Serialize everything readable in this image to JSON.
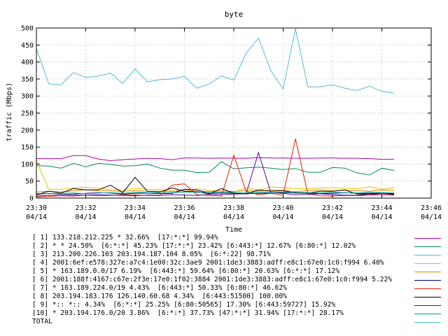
{
  "chart_data": {
    "type": "line",
    "title": "byte",
    "xlabel": "Time",
    "ylabel": "traffic (Mbps)",
    "ylim": [
      0,
      500
    ],
    "yticks": [
      "0",
      "50",
      "100",
      "150",
      "200",
      "250",
      "300",
      "350",
      "400",
      "450",
      "500"
    ],
    "xticks": [
      {
        "time": "23:30",
        "date": "04/14"
      },
      {
        "time": "23:32",
        "date": "04/14"
      },
      {
        "time": "23:34",
        "date": "04/14"
      },
      {
        "time": "23:36",
        "date": "04/14"
      },
      {
        "time": "23:38",
        "date": "04/14"
      },
      {
        "time": "23:40",
        "date": "04/14"
      },
      {
        "time": "23:42",
        "date": "04/14"
      },
      {
        "time": "23:44",
        "date": "04/14"
      },
      {
        "time": "23:46",
        "date": "04/14"
      }
    ],
    "x_minutes": [
      0,
      0.5,
      1,
      1.5,
      2,
      2.5,
      3,
      3.5,
      4,
      4.5,
      5,
      5.5,
      6,
      6.5,
      7,
      7.5,
      8,
      8.5,
      9,
      9.5,
      10,
      10.5,
      11,
      11.5,
      12,
      12.5,
      13,
      13.5,
      14,
      14.5
    ],
    "grid": true,
    "series": [
      {
        "name": "[ 1] 133.218.212.225 * 32.66%  [17:*:*] 99.94%",
        "color": "#b000b0",
        "values": [
          116,
          116,
          116,
          125,
          125,
          115,
          110,
          113,
          115,
          117,
          116,
          113,
          118,
          118,
          117,
          118,
          117,
          117,
          119,
          118,
          118,
          117,
          117,
          118,
          118,
          117,
          117,
          116,
          114,
          114
        ]
      },
      {
        "name": "[ 2] * * 24.50%  [6:*:*] 45.23% [17:*:*] 23.42% [6:443:*] 12.67% [6:80:*] 12.02%",
        "color": "#008a5a",
        "values": [
          95,
          94,
          88,
          102,
          92,
          102,
          99,
          94,
          95,
          100,
          88,
          82,
          82,
          75,
          76,
          107,
          86,
          89,
          91,
          88,
          84,
          87,
          76,
          76,
          90,
          88,
          74,
          68,
          88,
          81
        ]
      },
      {
        "name": "[ 3] 213.200.226.103 203.194.187.104 8.05%  [6:*:22] 98.71%",
        "color": "#55b8d8",
        "values": [
          440,
          336,
          333,
          369,
          355,
          358,
          368,
          337,
          380,
          342,
          348,
          350,
          358,
          323,
          335,
          359,
          347,
          426,
          470,
          374,
          321,
          498,
          327,
          327,
          333,
          323,
          316,
          329,
          314,
          308
        ]
      },
      {
        "name": "[ 4] 2001:6ef:e578:327e:a7c4:1e00:32c:3ae9 2001:1de3:3883:adff:e8c1:67e0:1c0:f994 6.40%",
        "color": "#e8c000",
        "values": [
          109,
          26,
          26,
          30,
          32,
          29,
          25,
          24,
          29,
          26,
          25,
          22,
          17,
          28,
          22,
          21,
          17,
          30,
          23,
          33,
          30,
          28,
          27,
          30,
          30,
          29,
          28,
          33,
          26,
          30
        ]
      },
      {
        "name": "[ 5] * 163.189.0.0/17 6.19%  [6:443:*] 59.64% [6:80:*] 20.63% [6:*:*] 17.12%",
        "color": "#e08000",
        "values": [
          18,
          20,
          18,
          21,
          25,
          22,
          21,
          20,
          22,
          20,
          20,
          19,
          25,
          20,
          19,
          21,
          19,
          22,
          20,
          24,
          22,
          19,
          22,
          24,
          21,
          23,
          22,
          20,
          24,
          22
        ]
      },
      {
        "name": "[ 6] 2001:188f:4167:c67e:2f3e:17e0:1f02:3884 2001:1de3:3883:adff:e8c1:67e0:1c0:f994 5.22%",
        "color": "#000080",
        "values": [
          11,
          14,
          11,
          12,
          14,
          16,
          15,
          12,
          14,
          15,
          13,
          14,
          26,
          24,
          14,
          15,
          14,
          13,
          14,
          15,
          16,
          16,
          14,
          14,
          14,
          16,
          14,
          14,
          14,
          14
        ]
      },
      {
        "name": "[ 7] * 163.189.224.0/19 4.43%  [6:443:*] 50.33% [6:80:*] 46.62%",
        "color": "#e02000",
        "values": [
          4,
          5,
          7,
          6,
          9,
          7,
          8,
          10,
          9,
          8,
          7,
          38,
          42,
          10,
          8,
          6,
          126,
          20,
          10,
          14,
          9,
          174,
          12,
          7,
          6,
          8,
          7,
          9,
          10,
          11
        ]
      },
      {
        "name": "[ 8] 203.194.183.176 126.140.60.68 4.34%  [6:443:51500] 100.00%",
        "color": "#000000",
        "values": [
          10,
          20,
          15,
          28,
          24,
          24,
          38,
          16,
          61,
          20,
          18,
          30,
          20,
          18,
          13,
          28,
          15,
          12,
          24,
          20,
          22,
          15,
          15,
          20,
          20,
          24,
          12,
          12,
          15,
          12
        ]
      },
      {
        "name": "[ 9] *:: *:: 4.34%  [6:*:*] 25.25% [6:80:50565] 17.30% [6:443:59727] 15.92%",
        "color": "#6000a0",
        "values": [
          6,
          8,
          7,
          8,
          9,
          10,
          9,
          8,
          7,
          9,
          8,
          10,
          9,
          8,
          11,
          10,
          12,
          13,
          134,
          16,
          14,
          10,
          11,
          13,
          10,
          9,
          8,
          12,
          10,
          9
        ]
      },
      {
        "name": "[10] * 203.194.176.0/20 3.86%  [6:*:*] 37.73% [47:*:*] 31.94% [17:*:*] 28.17%",
        "color": "#00a080",
        "values": [
          14,
          13,
          14,
          15,
          13,
          15,
          16,
          14,
          17,
          16,
          15,
          16,
          18,
          17,
          16,
          17,
          16,
          15,
          17,
          16,
          18,
          17,
          16,
          15,
          17,
          16,
          15,
          17,
          16,
          15
        ]
      },
      {
        "name": "TOTAL",
        "color": "#40c0c0",
        "values": []
      }
    ]
  }
}
